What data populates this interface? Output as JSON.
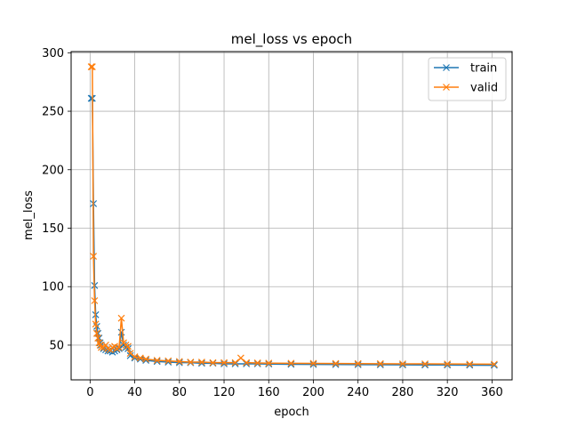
{
  "chart_data": {
    "type": "line",
    "title": "mel_loss vs epoch",
    "xlabel": "epoch",
    "ylabel": "mel_loss",
    "xlim": [
      -17,
      378
    ],
    "ylim": [
      20.3,
      301
    ],
    "xticks": [
      0,
      40,
      80,
      120,
      160,
      200,
      240,
      280,
      320,
      360
    ],
    "yticks": [
      50,
      100,
      150,
      200,
      250,
      300
    ],
    "grid": true,
    "legend_position": "top-right",
    "marker": "x",
    "series": [
      {
        "name": "train",
        "color": "#1f77b4",
        "x": [
          1,
          2,
          3,
          4,
          5,
          6,
          7,
          8,
          9,
          10,
          12,
          14,
          16,
          18,
          20,
          22,
          24,
          26,
          28,
          30,
          32,
          34,
          36,
          40,
          45,
          50,
          60,
          70,
          80,
          90,
          100,
          110,
          120,
          130,
          140,
          150,
          160,
          180,
          200,
          220,
          240,
          260,
          280,
          300,
          320,
          340,
          362
        ],
        "y": [
          261,
          261,
          171,
          101,
          76,
          66,
          60,
          56,
          52,
          50,
          47,
          46,
          45,
          45,
          44,
          45,
          46,
          47,
          61,
          50,
          48,
          47,
          41,
          39,
          38,
          37,
          36,
          35.5,
          35,
          35,
          34.5,
          34.5,
          34,
          34,
          34,
          34,
          33.8,
          33.6,
          33.5,
          33.4,
          33.3,
          33.2,
          33.1,
          33,
          33,
          32.9,
          32.8
        ]
      },
      {
        "name": "valid",
        "color": "#ff7f0e",
        "x": [
          1,
          2,
          3,
          4,
          5,
          6,
          7,
          8,
          9,
          10,
          12,
          14,
          16,
          18,
          20,
          22,
          24,
          26,
          28,
          30,
          32,
          34,
          36,
          40,
          45,
          50,
          60,
          70,
          80,
          90,
          100,
          110,
          120,
          130,
          135,
          140,
          150,
          160,
          180,
          200,
          220,
          240,
          260,
          280,
          300,
          320,
          340,
          362
        ],
        "y": [
          288,
          288,
          126,
          88,
          68,
          60,
          56,
          52,
          50,
          48,
          48,
          50,
          47,
          46,
          48,
          49,
          47,
          48,
          73,
          52,
          50,
          49,
          43,
          40,
          39,
          38,
          37,
          36.5,
          36,
          35.5,
          35.5,
          35,
          35,
          35,
          39,
          35,
          34.8,
          34.6,
          34.5,
          34.4,
          34.3,
          34.2,
          34.1,
          34,
          34,
          33.9,
          33.8,
          33.7
        ]
      }
    ]
  }
}
